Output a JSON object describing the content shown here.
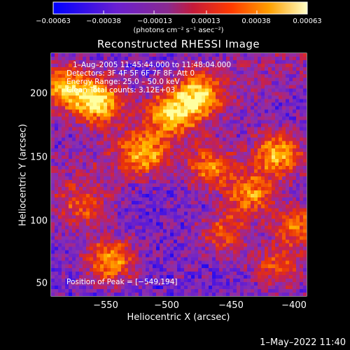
{
  "chart_data": {
    "type": "heatmap",
    "title": "Reconstructed RHESSI Image",
    "xlabel": "Heliocentric X (arcsec)",
    "ylabel": "Heliocentric Y (arcsec)",
    "xlim": [
      -590,
      -398
    ],
    "ylim": [
      43,
      226
    ],
    "xticks": [
      -550,
      -500,
      -450,
      -400
    ],
    "xtick_labels": [
      "−550",
      "−500",
      "−450",
      "−400"
    ],
    "yticks": [
      50,
      100,
      150,
      200
    ],
    "ytick_labels": [
      "50",
      "100",
      "150",
      "200"
    ],
    "colorbar": {
      "min": -0.00063,
      "max": 0.00063,
      "ticks": [
        -0.00063,
        -0.00038,
        -0.00013,
        0.00013,
        0.00038,
        0.00063
      ],
      "tick_labels": [
        "−0.00063",
        "−0.00038",
        "−0.00013",
        "0.00013",
        "0.00038",
        "0.00063"
      ],
      "unit_label": "(photons cm⁻² s⁻¹ asec⁻²)",
      "colormap": [
        "#0000ff",
        "#5a1ad8",
        "#8a2fb0",
        "#c0205a",
        "#e8300a",
        "#ff7a00",
        "#ffc000",
        "#ffffa0"
      ]
    },
    "annotations": [
      "1–Aug–2005 11:45:44.000 to 11:48:04.000",
      "Detectors: 3F 4F 5F 6F 7F 8F, Att 0",
      "Energy Range: 25.0 – 50.0 keV",
      "Clean      Total counts: 3.12E+03",
      "Position of Peak = [−549,194]"
    ],
    "peak_position": [
      -549,
      194
    ],
    "bright_regions": [
      {
        "x": -555,
        "y": 190,
        "level": 1.0
      },
      {
        "x": -580,
        "y": 200,
        "level": 0.8
      },
      {
        "x": -500,
        "y": 180,
        "level": 0.75
      },
      {
        "x": -480,
        "y": 195,
        "level": 0.8
      },
      {
        "x": -520,
        "y": 150,
        "level": 0.7
      },
      {
        "x": -470,
        "y": 140,
        "level": 0.65
      },
      {
        "x": -420,
        "y": 150,
        "level": 0.85
      },
      {
        "x": -440,
        "y": 120,
        "level": 0.7
      },
      {
        "x": -405,
        "y": 95,
        "level": 0.6
      },
      {
        "x": -545,
        "y": 70,
        "level": 0.75
      },
      {
        "x": -460,
        "y": 90,
        "level": 0.5
      },
      {
        "x": -565,
        "y": 110,
        "level": 0.45
      },
      {
        "x": -420,
        "y": 65,
        "level": 0.5
      }
    ]
  },
  "footer": {
    "timestamp": "1–May–2022 11:40"
  }
}
